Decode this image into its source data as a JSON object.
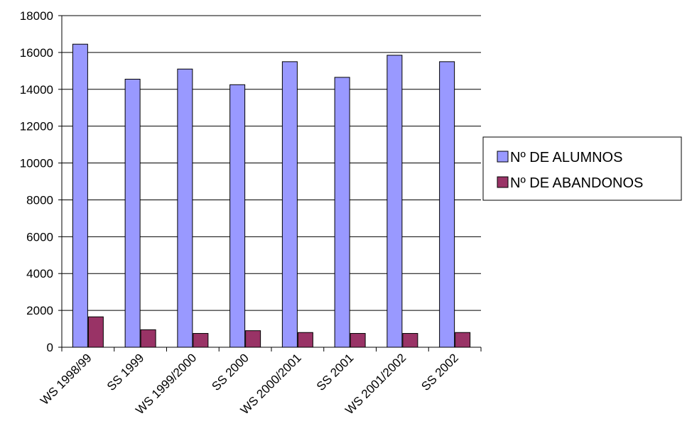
{
  "chart_data": {
    "type": "bar",
    "categories": [
      "WS 1998/99",
      "SS 1999",
      "WS 1999/2000",
      "SS 2000",
      "WS 2000/2001",
      "SS 2001",
      "WS 2001/2002",
      "SS 2002"
    ],
    "series": [
      {
        "name": "Nº DE ALUMNOS",
        "color": "#9999ff",
        "values": [
          16450,
          14550,
          15100,
          14250,
          15500,
          14650,
          15850,
          15500
        ]
      },
      {
        "name": "Nº DE ABANDONOS",
        "color": "#993366",
        "values": [
          1650,
          950,
          750,
          900,
          800,
          750,
          750,
          800
        ]
      }
    ],
    "ylim": [
      0,
      18000
    ],
    "yticks": [
      0,
      2000,
      4000,
      6000,
      8000,
      10000,
      12000,
      14000,
      16000,
      18000
    ],
    "grid": true,
    "legend_position": "right"
  }
}
